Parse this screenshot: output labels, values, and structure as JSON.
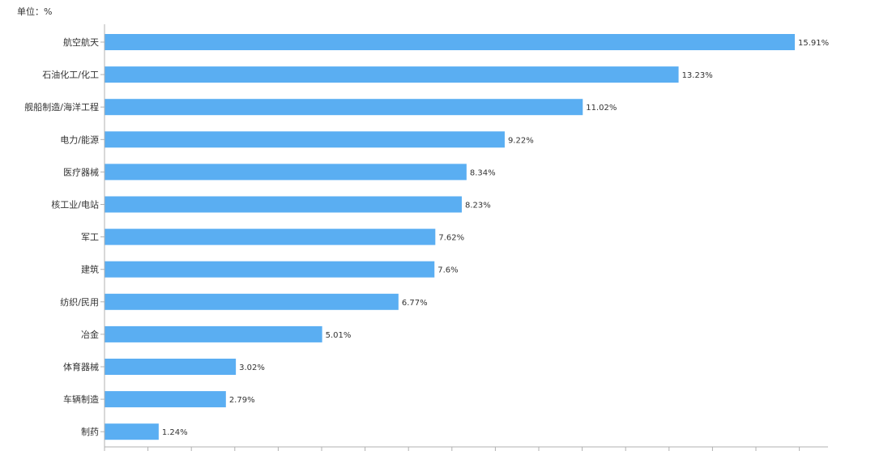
{
  "unit_label": "单位：%",
  "colors": {
    "bar": "#5aaef2",
    "axis": "#b0b0b0",
    "text": "#333333"
  },
  "chart_data": {
    "type": "bar",
    "orientation": "horizontal",
    "categories": [
      "航空航天",
      "石油化工/化工",
      "舰船制造/海洋工程",
      "电力/能源",
      "医疗器械",
      "核工业/电站",
      "军工",
      "建筑",
      "纺织/民用",
      "冶金",
      "体育器械",
      "车辆制造",
      "制药"
    ],
    "values": [
      15.91,
      13.23,
      11.02,
      9.22,
      8.34,
      8.23,
      7.62,
      7.6,
      6.77,
      5.01,
      3.02,
      2.79,
      1.24
    ],
    "value_labels": [
      "15.91%",
      "13.23%",
      "11.02%",
      "9.22%",
      "8.34%",
      "8.23%",
      "7.62%",
      "7.6%",
      "6.77%",
      "5.01%",
      "3.02%",
      "2.79%",
      "1.24%"
    ],
    "xlim": [
      0,
      16.7
    ],
    "grid": false,
    "legend": "none"
  }
}
